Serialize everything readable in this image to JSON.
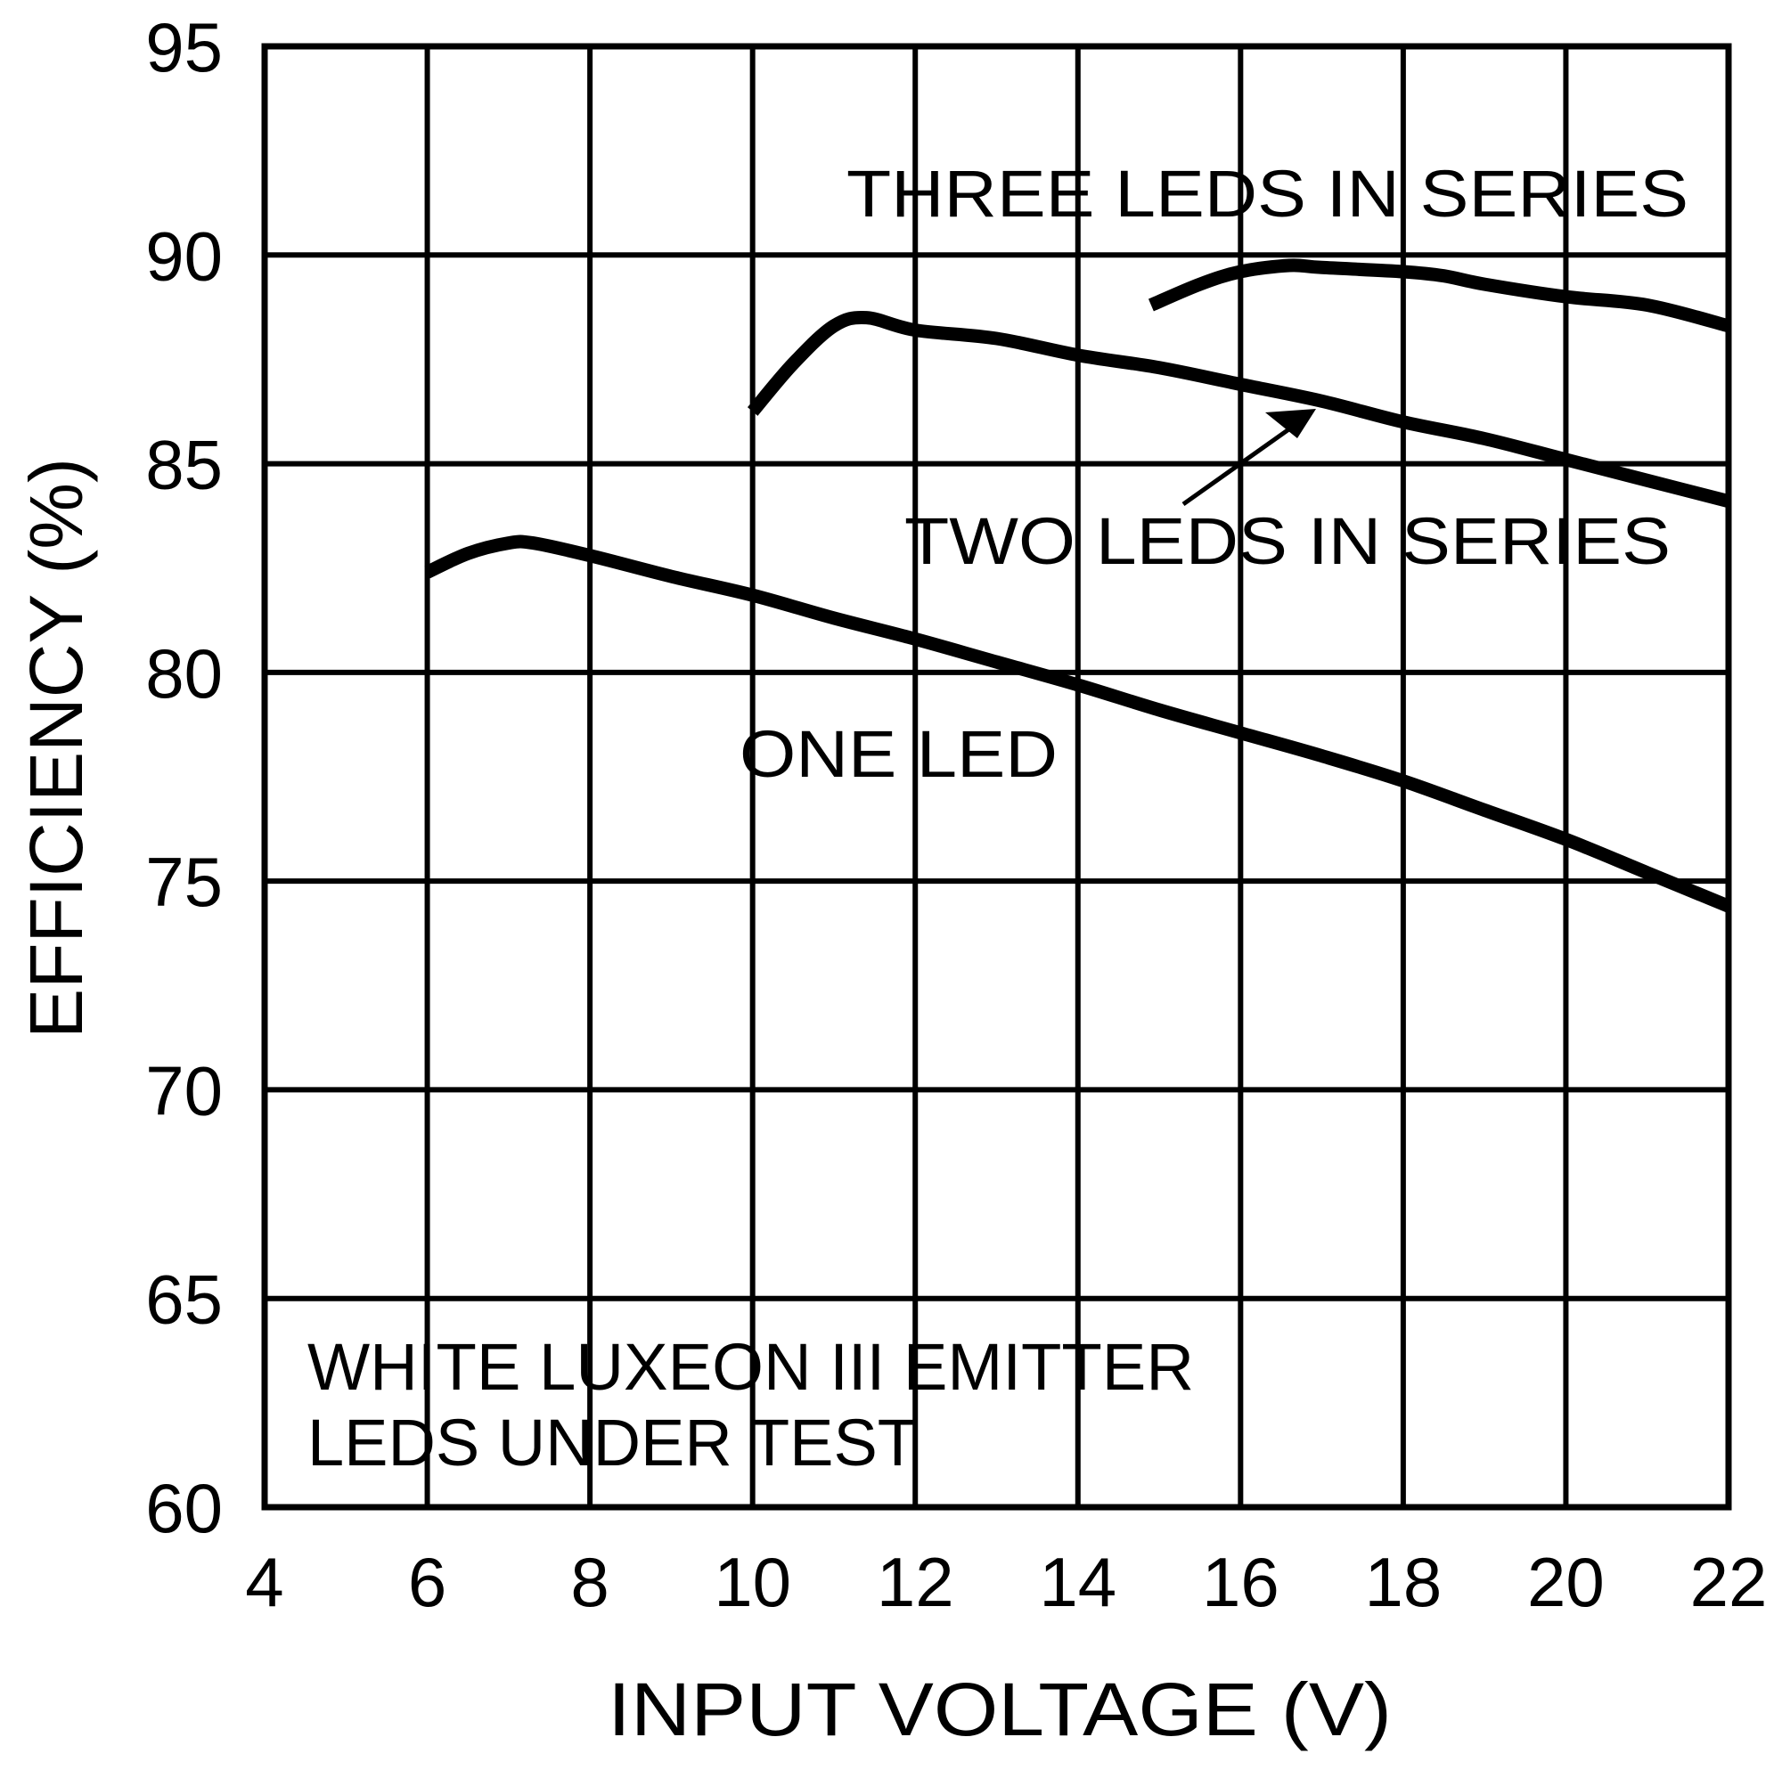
{
  "chart_data": {
    "type": "line",
    "title": "",
    "xlabel": "INPUT VOLTAGE (V)",
    "ylabel": "EFFICIENCY (%)",
    "xlim": [
      4,
      22
    ],
    "ylim": [
      60,
      95
    ],
    "x_ticks": [
      "4",
      "6",
      "8",
      "10",
      "12",
      "14",
      "16",
      "18",
      "20",
      "22"
    ],
    "y_ticks": [
      "95",
      "90",
      "85",
      "80",
      "75",
      "70",
      "65",
      "60"
    ],
    "grid": true,
    "legend": "none (series labeled by in-plot annotations)",
    "series": [
      {
        "name": "THREE LEDS IN SERIES",
        "x": [
          14.9,
          15.5,
          16.0,
          16.6,
          17.0,
          18.0,
          18.5,
          19.0,
          20.0,
          21.0,
          22.0
        ],
        "y": [
          88.8,
          89.3,
          89.6,
          89.75,
          89.7,
          89.6,
          89.5,
          89.3,
          89.0,
          88.8,
          88.3
        ]
      },
      {
        "name": "TWO LEDS IN SERIES",
        "x": [
          10.0,
          10.5,
          11.0,
          11.4,
          12.0,
          13.0,
          14.0,
          15.0,
          16.0,
          17.0,
          18.0,
          19.0,
          20.0,
          21.0,
          22.0
        ],
        "y": [
          86.25,
          87.4,
          88.3,
          88.5,
          88.2,
          88.0,
          87.6,
          87.3,
          86.9,
          86.5,
          86.0,
          85.6,
          85.1,
          84.6,
          84.1
        ]
      },
      {
        "name": "ONE LED",
        "x": [
          6.0,
          6.5,
          7.0,
          7.3,
          8.0,
          9.0,
          10.0,
          11.0,
          12.0,
          13.0,
          14.0,
          15.0,
          16.0,
          17.0,
          18.0,
          19.0,
          20.0,
          21.0,
          22.0
        ],
        "y": [
          82.4,
          82.85,
          83.1,
          83.1,
          82.8,
          82.3,
          81.85,
          81.3,
          80.8,
          80.25,
          79.7,
          79.1,
          78.55,
          78.0,
          77.4,
          76.7,
          76.0,
          75.2,
          74.4
        ]
      }
    ],
    "annotations": [
      {
        "text": "THREE LEDS IN SERIES",
        "x": 13.3,
        "y": 92.8
      },
      {
        "text": "TWO LEDS IN SERIES",
        "x": 14.0,
        "y": 84.6,
        "arrow_to": {
          "x": 16.9,
          "y": 86.4
        }
      },
      {
        "text": "ONE LED",
        "x": 9.9,
        "y": 79.0
      },
      {
        "text": "WHITE LUXEON III EMITTER",
        "x": 4.5,
        "y": 63.3
      },
      {
        "text": "LEDS UNDER TEST",
        "x": 4.5,
        "y": 61.5
      }
    ]
  },
  "labels": {
    "x_axis_title": "INPUT VOLTAGE (V)",
    "y_axis_title": "EFFICIENCY (%)",
    "three_leds": "THREE LEDS IN SERIES",
    "two_leds": "TWO LEDS IN SERIES",
    "one_led": "ONE LED",
    "note_line1": "WHITE LUXEON III EMITTER",
    "note_line2": "LEDS UNDER TEST"
  },
  "colors": {
    "background": "#ffffff",
    "ink": "#000000"
  }
}
